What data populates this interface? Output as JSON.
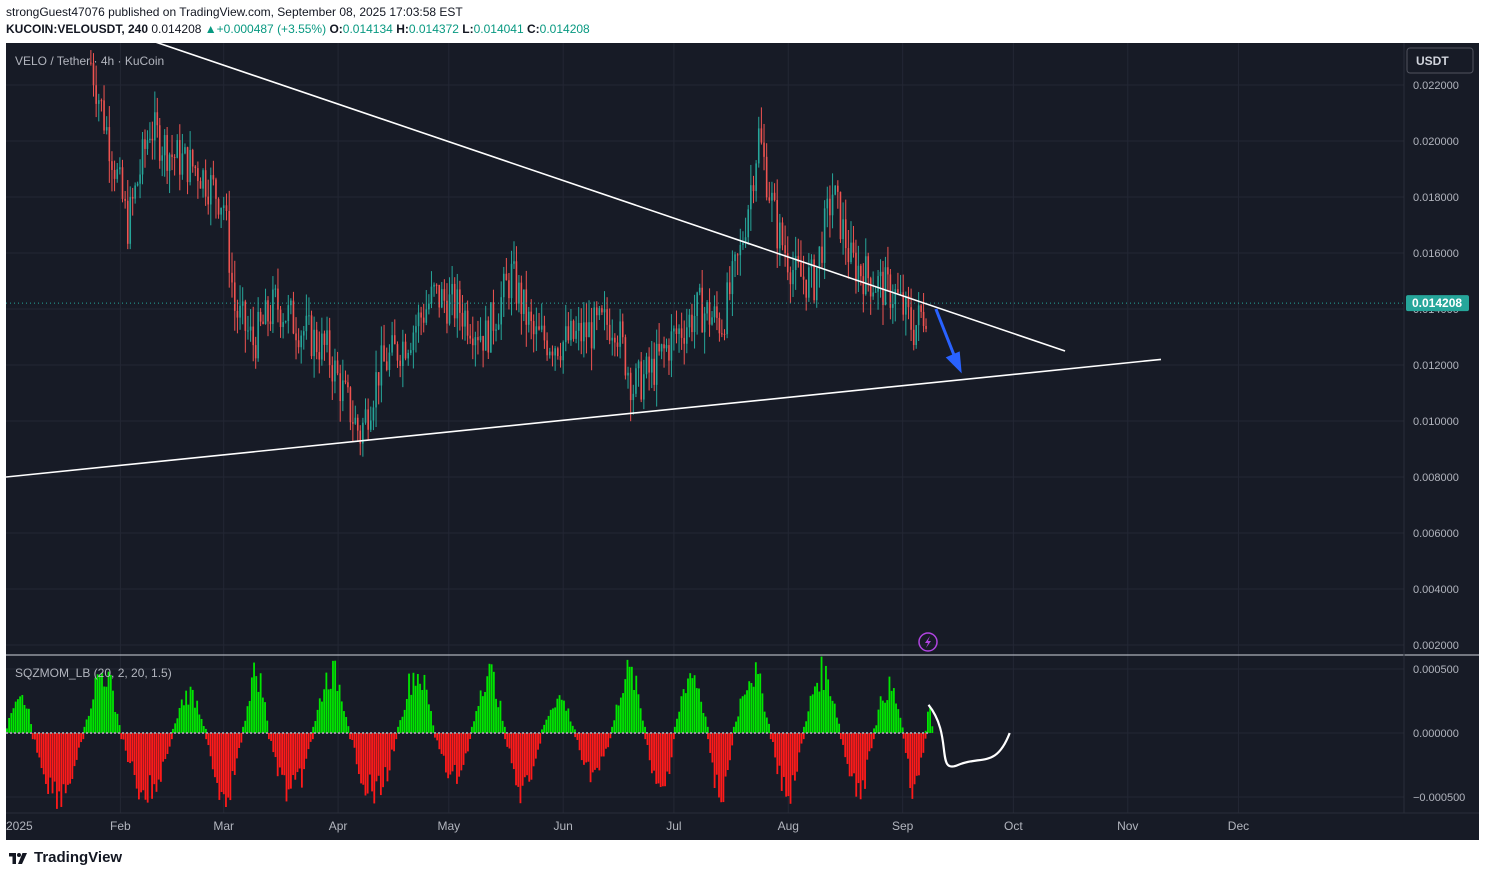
{
  "header": {
    "publisher_line": "strongGuest47076 published on TradingView.com, September 08, 2025 17:03:58 EST",
    "symbol": "KUCOIN:VELOUSDT, 240",
    "last": "0.014208",
    "change": "+0.000487 (+3.55%)",
    "o_label": "O:",
    "o_value": "0.014134",
    "h_label": "H:",
    "h_value": "0.014372",
    "l_label": "L:",
    "l_value": "0.014041",
    "c_label": "C:",
    "c_value": "0.014208"
  },
  "chart": {
    "legend": "VELO / Tether · 4h · KuCoin",
    "currency_button": "USDT",
    "price_tag": "0.014208",
    "indicator_legend": "SQZMOM_LB (20, 2, 20, 1.5)"
  },
  "footer": {
    "brand": "TradingView"
  },
  "colors": {
    "background": "#171b26",
    "grid": "#232734",
    "up": "#26a69a",
    "down": "#ef5350",
    "trendline": "#ffffff",
    "arrow": "#2962ff",
    "hist_green": "#00e600",
    "hist_red": "#ff1a1a",
    "price_tag": "#26a69a"
  },
  "chart_data": [
    {
      "type": "candlestick",
      "timeframe": "4h",
      "y_axis": {
        "ticks": [
          0.022,
          0.02,
          0.018,
          0.016,
          0.014,
          0.012,
          0.01,
          0.008,
          0.006,
          0.004,
          0.002
        ],
        "tick_labels": [
          "0.022000",
          "0.020000",
          "0.018000",
          "0.016000",
          "0.014000",
          "0.012000",
          "0.010000",
          "0.008000",
          "0.006000",
          "0.004000",
          "0.002000"
        ],
        "range": [
          0.002,
          0.0234
        ]
      },
      "x_axis": {
        "tick_labels": [
          "2025",
          "Feb",
          "Mar",
          "Apr",
          "May",
          "Jun",
          "Jul",
          "Aug",
          "Sep",
          "Oct",
          "Nov",
          "Dec"
        ]
      },
      "current_price": 0.014208,
      "price_path": [
        [
          "2025-01-24",
          0.0228
        ],
        [
          "2025-01-29",
          0.02
        ],
        [
          "2025-02-03",
          0.017
        ],
        [
          "2025-02-09",
          0.0205
        ],
        [
          "2025-02-15",
          0.0195
        ],
        [
          "2025-02-22",
          0.019
        ],
        [
          "2025-03-01",
          0.0178
        ],
        [
          "2025-03-04",
          0.014
        ],
        [
          "2025-03-09",
          0.0128
        ],
        [
          "2025-03-15",
          0.0142
        ],
        [
          "2025-03-22",
          0.0133
        ],
        [
          "2025-03-29",
          0.0125
        ],
        [
          "2025-04-03",
          0.0108
        ],
        [
          "2025-04-07",
          0.0095
        ],
        [
          "2025-04-12",
          0.0118
        ],
        [
          "2025-04-20",
          0.013
        ],
        [
          "2025-04-27",
          0.0145
        ],
        [
          "2025-05-04",
          0.014
        ],
        [
          "2025-05-11",
          0.013
        ],
        [
          "2025-05-18",
          0.0152
        ],
        [
          "2025-05-24",
          0.013
        ],
        [
          "2025-06-01",
          0.0128
        ],
        [
          "2025-06-08",
          0.0132
        ],
        [
          "2025-06-15",
          0.0136
        ],
        [
          "2025-06-20",
          0.0112
        ],
        [
          "2025-06-25",
          0.0118
        ],
        [
          "2025-07-01",
          0.013
        ],
        [
          "2025-07-08",
          0.014
        ],
        [
          "2025-07-14",
          0.0135
        ],
        [
          "2025-07-19",
          0.016
        ],
        [
          "2025-07-24",
          0.0202
        ],
        [
          "2025-07-29",
          0.0168
        ],
        [
          "2025-08-03",
          0.0152
        ],
        [
          "2025-08-08",
          0.015
        ],
        [
          "2025-08-13",
          0.0182
        ],
        [
          "2025-08-18",
          0.0157
        ],
        [
          "2025-08-24",
          0.015
        ],
        [
          "2025-08-30",
          0.0145
        ],
        [
          "2025-09-04",
          0.0133
        ],
        [
          "2025-09-08",
          0.014208
        ]
      ],
      "annotations": {
        "descending_trendline": [
          [
            "2025-01-11",
            0.0249
          ],
          [
            "2025-10-15",
            0.0125
          ]
        ],
        "ascending_trendline": [
          [
            "2025-01-01",
            0.008
          ],
          [
            "2025-11-10",
            0.0122
          ]
        ],
        "arrow": [
          [
            "2025-09-10",
            0.014
          ],
          [
            "2025-09-17",
            0.0117
          ]
        ]
      }
    },
    {
      "type": "bar",
      "name": "SQZMOM_LB (20, 2, 20, 1.5)",
      "y_axis": {
        "ticks": [
          0.0005,
          0.0,
          -0.0005
        ],
        "tick_labels": [
          "0.000500",
          "0.000000",
          "−0.000500"
        ],
        "range": [
          -0.0006,
          0.0006
        ]
      },
      "histogram_blocks": [
        [
          "2025-01-01",
          0.00045,
          "up"
        ],
        [
          "2025-01-08",
          -0.0006,
          "down"
        ],
        [
          "2025-01-22",
          0.0006,
          "up"
        ],
        [
          "2025-02-01",
          -0.0006,
          "down"
        ],
        [
          "2025-02-15",
          0.0004,
          "up"
        ],
        [
          "2025-02-24",
          -0.0006,
          "down"
        ],
        [
          "2025-03-06",
          0.0006,
          "up"
        ],
        [
          "2025-03-13",
          -0.0006,
          "down"
        ],
        [
          "2025-03-25",
          0.0006,
          "up"
        ],
        [
          "2025-04-04",
          -0.0006,
          "down"
        ],
        [
          "2025-04-17",
          0.0006,
          "up"
        ],
        [
          "2025-04-27",
          -0.00045,
          "down"
        ],
        [
          "2025-05-07",
          0.0006,
          "up"
        ],
        [
          "2025-05-16",
          -0.0006,
          "down"
        ],
        [
          "2025-05-26",
          0.00035,
          "up"
        ],
        [
          "2025-06-04",
          -0.0004,
          "down"
        ],
        [
          "2025-06-14",
          0.0006,
          "up"
        ],
        [
          "2025-06-23",
          -0.0006,
          "down"
        ],
        [
          "2025-07-01",
          0.0006,
          "up"
        ],
        [
          "2025-07-10",
          -0.0006,
          "down"
        ],
        [
          "2025-07-17",
          0.0006,
          "up"
        ],
        [
          "2025-07-27",
          -0.0006,
          "down"
        ],
        [
          "2025-08-05",
          0.0006,
          "up"
        ],
        [
          "2025-08-15",
          -0.0006,
          "down"
        ],
        [
          "2025-08-24",
          0.00045,
          "up"
        ],
        [
          "2025-09-01",
          -0.00055,
          "down"
        ],
        [
          "2025-09-07",
          0.00022,
          "up"
        ]
      ],
      "annotation_curve": [
        [
          "2025-09-08",
          0.00022
        ],
        [
          "2025-09-12",
          -0.0001
        ],
        [
          "2025-09-16",
          -0.00025
        ],
        [
          "2025-09-23",
          -0.00025
        ],
        [
          "2025-09-30",
          0.0
        ]
      ]
    }
  ]
}
